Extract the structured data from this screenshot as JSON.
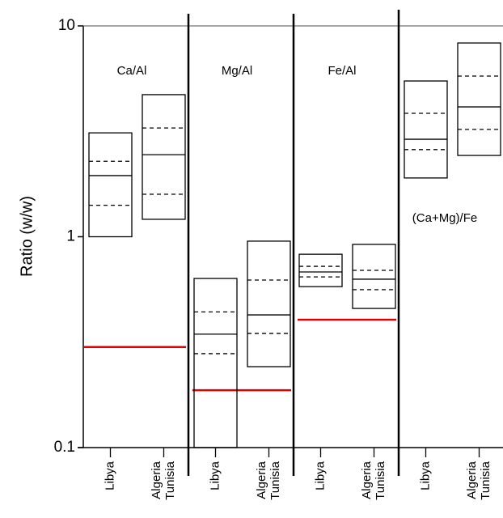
{
  "chart_data": {
    "type": "box",
    "ylabel": "Ratio (w/w)",
    "log": true,
    "ylim": [
      0.1,
      10
    ],
    "yticks": [
      0.1,
      1,
      10
    ],
    "reference_color": "#e00000",
    "panels": [
      {
        "label": "Ca/Al",
        "reference": 0.3,
        "boxes": [
          {
            "label": [
              "Libya"
            ],
            "max": 3.11,
            "upper": 2.28,
            "median": 1.95,
            "lower": 1.41,
            "min": 1.0
          },
          {
            "label": [
              "Algeria",
              "Tunisia"
            ],
            "max": 4.72,
            "upper": 3.28,
            "median": 2.45,
            "lower": 1.59,
            "min": 1.21
          }
        ]
      },
      {
        "label": "Mg/Al",
        "reference": 0.187,
        "boxes": [
          {
            "label": [
              "Libya"
            ],
            "max": 0.634,
            "upper": 0.44,
            "median": 0.345,
            "lower": 0.279,
            "min": 0.1
          },
          {
            "label": [
              "Algeria",
              "Tunisia"
            ],
            "max": 0.953,
            "upper": 0.623,
            "median": 0.426,
            "lower": 0.348,
            "min": 0.242
          }
        ]
      },
      {
        "label": "Fe/Al",
        "reference": 0.404,
        "boxes": [
          {
            "label": [
              "Libya"
            ],
            "max": 0.826,
            "upper": 0.724,
            "median": 0.681,
            "lower": 0.645,
            "min": 0.58
          },
          {
            "label": [
              "Algeria",
              "Tunisia"
            ],
            "max": 0.92,
            "upper": 0.693,
            "median": 0.629,
            "lower": 0.561,
            "min": 0.457
          }
        ]
      },
      {
        "label": "(Ca+Mg)/Fe",
        "boxes": [
          {
            "label": [
              "Libya"
            ],
            "max": 5.48,
            "upper": 3.85,
            "median": 2.9,
            "lower": 2.59,
            "min": 1.9
          },
          {
            "label": [
              "Algeria",
              "Tunisia"
            ],
            "max": 8.3,
            "upper": 5.78,
            "median": 4.13,
            "lower": 3.23,
            "min": 2.43
          }
        ]
      }
    ]
  }
}
